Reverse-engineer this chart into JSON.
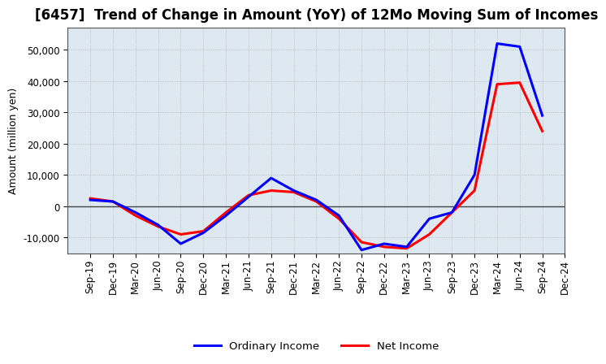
{
  "title": "[6457]  Trend of Change in Amount (YoY) of 12Mo Moving Sum of Incomes",
  "ylabel": "Amount (million yen)",
  "labels": [
    "Sep-19",
    "Dec-19",
    "Mar-20",
    "Jun-20",
    "Sep-20",
    "Dec-20",
    "Mar-21",
    "Jun-21",
    "Sep-21",
    "Dec-21",
    "Mar-22",
    "Jun-22",
    "Sep-22",
    "Dec-22",
    "Mar-23",
    "Jun-23",
    "Sep-23",
    "Dec-23",
    "Mar-24",
    "Jun-24",
    "Sep-24",
    "Dec-24"
  ],
  "ordinary_income": [
    2000,
    1500,
    -2000,
    -6000,
    -12000,
    -8500,
    -3000,
    3000,
    9000,
    5000,
    2000,
    -3000,
    -14000,
    -12000,
    -13000,
    -4000,
    -2000,
    10000,
    52000,
    51000,
    29000,
    null
  ],
  "net_income": [
    2500,
    1500,
    -3000,
    -6500,
    -9000,
    -8000,
    -2000,
    3500,
    5000,
    4500,
    1500,
    -4000,
    -11500,
    -13000,
    -13500,
    -9000,
    -2000,
    5000,
    39000,
    39500,
    24000,
    null
  ],
  "ordinary_color": "#0000ff",
  "net_color": "#ff0000",
  "ylim": [
    -15000,
    57000
  ],
  "yticks": [
    -10000,
    0,
    10000,
    20000,
    30000,
    40000,
    50000
  ],
  "plot_bg_color": "#dde8f0",
  "figure_bg_color": "#ffffff",
  "grid_color": "#aaaaaa",
  "legend_ordinary": "Ordinary Income",
  "legend_net": "Net Income",
  "title_fontsize": 12,
  "label_fontsize": 9,
  "tick_fontsize": 8.5
}
